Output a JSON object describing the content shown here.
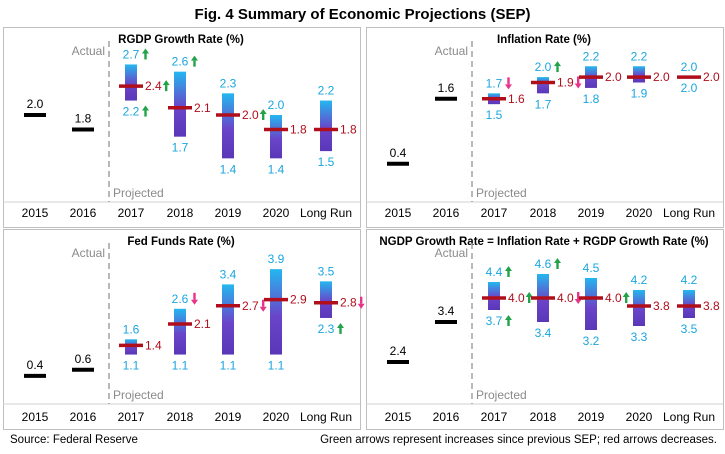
{
  "title": "Fig. 4 Summary  of Economic Projections (SEP)",
  "footer": {
    "source": "Source: Federal Reserve",
    "note": "Green arrows represent increases since previous SEP; red arrows decreases."
  },
  "colors": {
    "median": "#b00e1b",
    "high_low": "#1aa6df",
    "median_text": "#b00e1b",
    "up_arrow": "#22a34a",
    "down_arrow": "#e8338a",
    "actual_bar": "#000000",
    "divider": "#a0a0a0",
    "border": "#bfbfbf"
  },
  "labels": {
    "actual": "Actual",
    "projected": "Projected"
  },
  "chart_data": [
    {
      "type": "range-median",
      "title": "RGDP  Growth Rate (%)",
      "categories": [
        "2015",
        "2016",
        "2017",
        "2018",
        "2019",
        "2020",
        "Long Run"
      ],
      "actual": [
        {
          "year": "2015",
          "value": 2.0
        },
        {
          "year": "2016",
          "value": 1.8
        }
      ],
      "projections": [
        {
          "year": "2017",
          "high": 2.7,
          "median": 2.4,
          "low": 2.2,
          "high_arrow": "up",
          "median_arrow": "up",
          "low_arrow": "up"
        },
        {
          "year": "2018",
          "high": 2.6,
          "median": 2.1,
          "low": 1.7,
          "high_arrow": "up",
          "median_arrow": "",
          "low_arrow": ""
        },
        {
          "year": "2019",
          "high": 2.3,
          "median": 2.0,
          "low": 1.4,
          "high_arrow": "",
          "median_arrow": "up",
          "low_arrow": ""
        },
        {
          "year": "2020",
          "high": 2.0,
          "median": 1.8,
          "low": 1.4,
          "high_arrow": "",
          "median_arrow": "",
          "low_arrow": ""
        },
        {
          "year": "Long Run",
          "high": 2.2,
          "median": 1.8,
          "low": 1.5,
          "high_arrow": "",
          "median_arrow": "",
          "low_arrow": ""
        }
      ],
      "ylim": [
        1.1,
        2.9
      ]
    },
    {
      "type": "range-median",
      "title": "Inflation  Rate (%)",
      "categories": [
        "2015",
        "2016",
        "2017",
        "2018",
        "2019",
        "2020",
        "Long Run"
      ],
      "actual": [
        {
          "year": "2015",
          "value": 0.4
        },
        {
          "year": "2016",
          "value": 1.6
        }
      ],
      "projections": [
        {
          "year": "2017",
          "high": 1.7,
          "median": 1.6,
          "low": 1.5,
          "high_arrow": "down",
          "median_arrow": "",
          "low_arrow": ""
        },
        {
          "year": "2018",
          "high": 2.0,
          "median": 1.9,
          "low": 1.7,
          "high_arrow": "up",
          "median_arrow": "down",
          "low_arrow": ""
        },
        {
          "year": "2019",
          "high": 2.2,
          "median": 2.0,
          "low": 1.8,
          "high_arrow": "",
          "median_arrow": "",
          "low_arrow": ""
        },
        {
          "year": "2020",
          "high": 2.2,
          "median": 2.0,
          "low": 1.9,
          "high_arrow": "",
          "median_arrow": "",
          "low_arrow": ""
        },
        {
          "year": "Long Run",
          "high": 2.0,
          "median": 2.0,
          "low": 2.0,
          "high_arrow": "",
          "median_arrow": "",
          "low_arrow": ""
        }
      ],
      "ylim": [
        0.1,
        2.5
      ]
    },
    {
      "type": "range-median",
      "title": "Fed Funds  Rate (%)",
      "categories": [
        "2015",
        "2016",
        "2017",
        "2018",
        "2019",
        "2020",
        "Long Run"
      ],
      "actual": [
        {
          "year": "2015",
          "value": 0.4
        },
        {
          "year": "2016",
          "value": 0.6
        }
      ],
      "projections": [
        {
          "year": "2017",
          "high": 1.6,
          "median": 1.4,
          "low": 1.1,
          "high_arrow": "",
          "median_arrow": "",
          "low_arrow": ""
        },
        {
          "year": "2018",
          "high": 2.6,
          "median": 2.1,
          "low": 1.1,
          "high_arrow": "down",
          "median_arrow": "",
          "low_arrow": ""
        },
        {
          "year": "2019",
          "high": 3.4,
          "median": 2.7,
          "low": 1.1,
          "high_arrow": "",
          "median_arrow": "down",
          "low_arrow": ""
        },
        {
          "year": "2020",
          "high": 3.9,
          "median": 2.9,
          "low": 1.1,
          "high_arrow": "",
          "median_arrow": "",
          "low_arrow": ""
        },
        {
          "year": "Long Run",
          "high": 3.5,
          "median": 2.8,
          "low": 2.3,
          "high_arrow": "",
          "median_arrow": "down",
          "low_arrow": "up"
        }
      ],
      "ylim": [
        0.2,
        4.2
      ]
    },
    {
      "type": "range-median",
      "title": "NGDP  Growth Rate = Inflation Rate + RGDP  Growth Rate (%)",
      "categories": [
        "2015",
        "2016",
        "2017",
        "2018",
        "2019",
        "2020",
        "Long Run"
      ],
      "actual": [
        {
          "year": "2015",
          "value": 2.4
        },
        {
          "year": "2016",
          "value": 3.4
        }
      ],
      "projections": [
        {
          "year": "2017",
          "high": 4.4,
          "median": 4.0,
          "low": 3.7,
          "high_arrow": "up",
          "median_arrow": "up",
          "low_arrow": "up"
        },
        {
          "year": "2018",
          "high": 4.6,
          "median": 4.0,
          "low": 3.4,
          "high_arrow": "up",
          "median_arrow": "down",
          "low_arrow": ""
        },
        {
          "year": "2019",
          "high": 4.5,
          "median": 4.0,
          "low": 3.2,
          "high_arrow": "",
          "median_arrow": "up",
          "low_arrow": ""
        },
        {
          "year": "2020",
          "high": 4.2,
          "median": 3.8,
          "low": 3.3,
          "high_arrow": "",
          "median_arrow": "",
          "low_arrow": ""
        },
        {
          "year": "Long Run",
          "high": 4.2,
          "median": 3.8,
          "low": 3.5,
          "high_arrow": "",
          "median_arrow": "",
          "low_arrow": ""
        }
      ],
      "ylim": [
        1.9,
        5.0
      ]
    }
  ]
}
